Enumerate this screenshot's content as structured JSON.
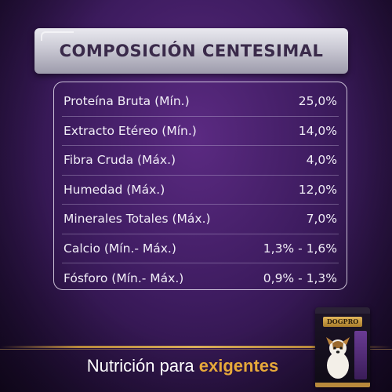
{
  "title": "COMPOSICIÓN CENTESIMAL",
  "composition": [
    {
      "label": "Proteína Bruta (Mín.)",
      "value": "25,0%"
    },
    {
      "label": "Extracto Etéreo (Mín.)",
      "value": "14,0%"
    },
    {
      "label": "Fibra Cruda (Máx.)",
      "value": "4,0%"
    },
    {
      "label": "Humedad (Máx.)",
      "value": "12,0%"
    },
    {
      "label": "Minerales Totales (Máx.)",
      "value": "7,0%"
    },
    {
      "label": "Calcio (Mín.- Máx.)",
      "value": "1,3% - 1,6%"
    },
    {
      "label": "Fósforo (Mín.- Máx.)",
      "value": "0,9% - 1,3%"
    }
  ],
  "tagline": {
    "prefix": "Nutrición para ",
    "accent": "exigentes"
  },
  "product": {
    "brand": "DOGPRO",
    "icon": "dog-food-bag-icon"
  },
  "colors": {
    "background": "#3e1c60",
    "accent_gold": "#e7a93a",
    "title_text": "#3a2a4a"
  }
}
